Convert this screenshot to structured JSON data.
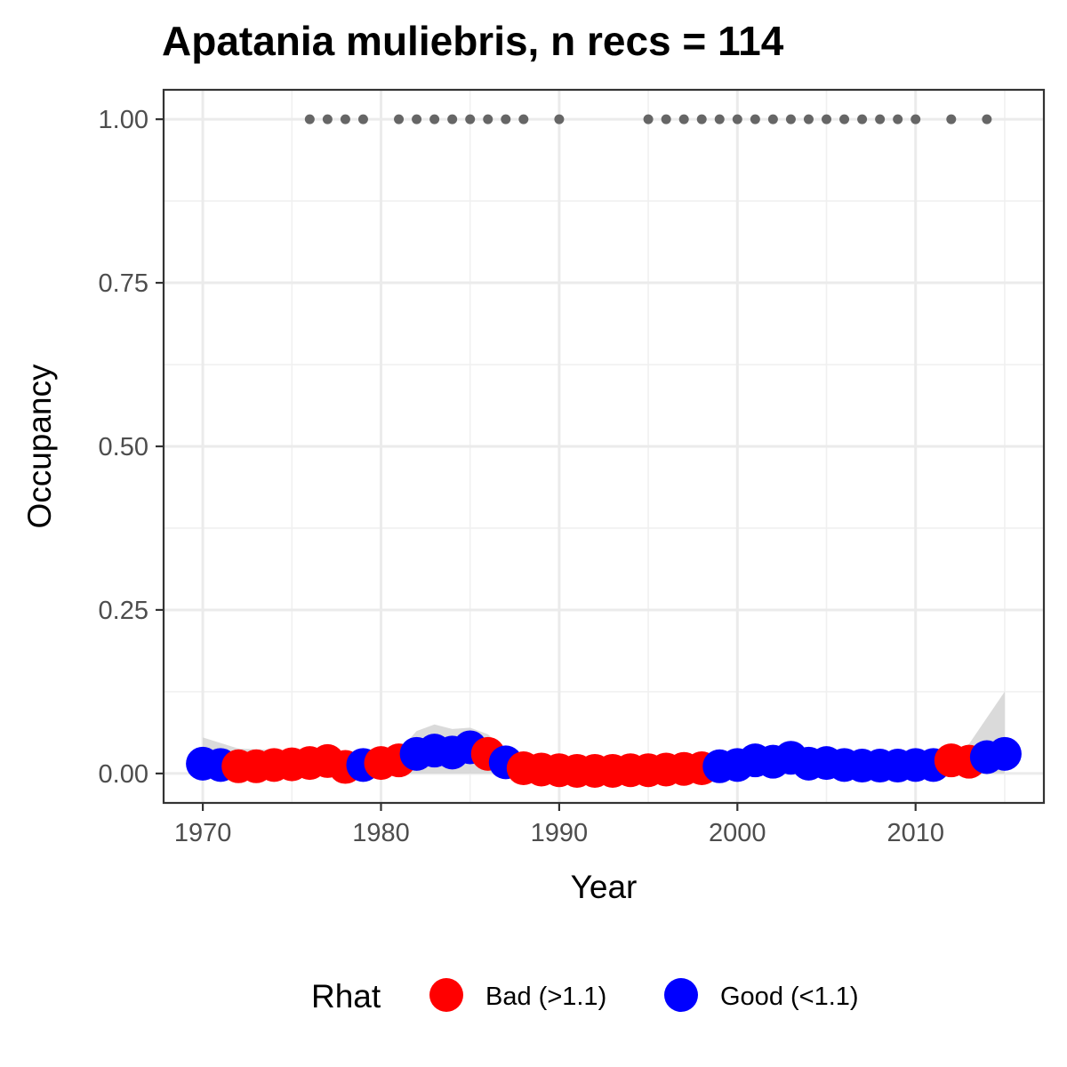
{
  "chart_data": {
    "type": "scatter",
    "title": "Apatania muliebris, n recs = 114",
    "xlabel": "Year",
    "ylabel": "Occupancy",
    "xlim": [
      1967.8,
      2017.2
    ],
    "ylim": [
      -0.045,
      1.045
    ],
    "x_ticks": [
      1970,
      1980,
      1990,
      2000,
      2010
    ],
    "x_tick_labels": [
      "1970",
      "1980",
      "1990",
      "2000",
      "2010"
    ],
    "y_ticks": [
      0,
      0.25,
      0.5,
      0.75,
      1.0
    ],
    "y_tick_labels": [
      "0.00",
      "0.25",
      "0.50",
      "0.75",
      "1.00"
    ],
    "grid": true,
    "legend": {
      "title": "Rhat",
      "position": "bottom",
      "entries": [
        {
          "label": "Bad (>1.1)",
          "color": "#ff0000"
        },
        {
          "label": "Good (<1.1)",
          "color": "#0000ff"
        }
      ]
    },
    "colors": {
      "Bad": "#ff0000",
      "Good": "#0000ff",
      "records": "#666666",
      "ribbon": "#d3d3d3"
    },
    "occupancy": [
      {
        "year": 1970,
        "value": 0.015,
        "rhat": "Good"
      },
      {
        "year": 1971,
        "value": 0.013,
        "rhat": "Good"
      },
      {
        "year": 1972,
        "value": 0.011,
        "rhat": "Bad"
      },
      {
        "year": 1973,
        "value": 0.011,
        "rhat": "Bad"
      },
      {
        "year": 1974,
        "value": 0.013,
        "rhat": "Bad"
      },
      {
        "year": 1975,
        "value": 0.014,
        "rhat": "Bad"
      },
      {
        "year": 1976,
        "value": 0.016,
        "rhat": "Bad"
      },
      {
        "year": 1977,
        "value": 0.019,
        "rhat": "Bad"
      },
      {
        "year": 1978,
        "value": 0.01,
        "rhat": "Bad"
      },
      {
        "year": 1979,
        "value": 0.013,
        "rhat": "Good"
      },
      {
        "year": 1980,
        "value": 0.016,
        "rhat": "Bad"
      },
      {
        "year": 1981,
        "value": 0.02,
        "rhat": "Bad"
      },
      {
        "year": 1982,
        "value": 0.03,
        "rhat": "Good"
      },
      {
        "year": 1983,
        "value": 0.035,
        "rhat": "Good"
      },
      {
        "year": 1984,
        "value": 0.032,
        "rhat": "Good"
      },
      {
        "year": 1985,
        "value": 0.04,
        "rhat": "Good"
      },
      {
        "year": 1986,
        "value": 0.03,
        "rhat": "Bad"
      },
      {
        "year": 1987,
        "value": 0.017,
        "rhat": "Good"
      },
      {
        "year": 1988,
        "value": 0.008,
        "rhat": "Bad"
      },
      {
        "year": 1989,
        "value": 0.006,
        "rhat": "Bad"
      },
      {
        "year": 1990,
        "value": 0.005,
        "rhat": "Bad"
      },
      {
        "year": 1991,
        "value": 0.004,
        "rhat": "Bad"
      },
      {
        "year": 1992,
        "value": 0.004,
        "rhat": "Bad"
      },
      {
        "year": 1993,
        "value": 0.004,
        "rhat": "Bad"
      },
      {
        "year": 1994,
        "value": 0.005,
        "rhat": "Bad"
      },
      {
        "year": 1995,
        "value": 0.005,
        "rhat": "Bad"
      },
      {
        "year": 1996,
        "value": 0.006,
        "rhat": "Bad"
      },
      {
        "year": 1997,
        "value": 0.007,
        "rhat": "Bad"
      },
      {
        "year": 1998,
        "value": 0.008,
        "rhat": "Bad"
      },
      {
        "year": 1999,
        "value": 0.011,
        "rhat": "Good"
      },
      {
        "year": 2000,
        "value": 0.013,
        "rhat": "Good"
      },
      {
        "year": 2001,
        "value": 0.02,
        "rhat": "Good"
      },
      {
        "year": 2002,
        "value": 0.018,
        "rhat": "Good"
      },
      {
        "year": 2003,
        "value": 0.024,
        "rhat": "Good"
      },
      {
        "year": 2004,
        "value": 0.015,
        "rhat": "Good"
      },
      {
        "year": 2005,
        "value": 0.016,
        "rhat": "Good"
      },
      {
        "year": 2006,
        "value": 0.013,
        "rhat": "Good"
      },
      {
        "year": 2007,
        "value": 0.012,
        "rhat": "Good"
      },
      {
        "year": 2008,
        "value": 0.012,
        "rhat": "Good"
      },
      {
        "year": 2009,
        "value": 0.012,
        "rhat": "Good"
      },
      {
        "year": 2010,
        "value": 0.013,
        "rhat": "Good"
      },
      {
        "year": 2011,
        "value": 0.013,
        "rhat": "Good"
      },
      {
        "year": 2012,
        "value": 0.02,
        "rhat": "Bad"
      },
      {
        "year": 2013,
        "value": 0.018,
        "rhat": "Bad"
      },
      {
        "year": 2014,
        "value": 0.025,
        "rhat": "Good"
      },
      {
        "year": 2015,
        "value": 0.03,
        "rhat": "Good"
      }
    ],
    "ribbon": {
      "years": [
        1970,
        1972,
        1974,
        1976,
        1978,
        1980,
        1981,
        1982,
        1983,
        1984,
        1985,
        1986,
        1987,
        1988,
        1990,
        1995,
        2000,
        2003,
        2005,
        2010,
        2012,
        2013,
        2014,
        2015
      ],
      "lower": [
        0.0,
        0.0,
        0.0,
        0.0,
        0.0,
        0.0,
        0.0,
        0.0,
        0.0,
        0.0,
        0.0,
        0.0,
        0.0,
        0.0,
        0.0,
        0.0,
        0.0,
        0.0,
        0.0,
        0.0,
        0.0,
        0.0,
        0.0,
        0.0
      ],
      "upper": [
        0.055,
        0.038,
        0.036,
        0.034,
        0.032,
        0.028,
        0.035,
        0.065,
        0.075,
        0.068,
        0.07,
        0.06,
        0.035,
        0.02,
        0.018,
        0.02,
        0.022,
        0.03,
        0.025,
        0.025,
        0.03,
        0.045,
        0.085,
        0.125
      ]
    },
    "record_years": [
      1976,
      1977,
      1978,
      1979,
      1981,
      1982,
      1983,
      1984,
      1985,
      1986,
      1987,
      1988,
      1990,
      1995,
      1996,
      1997,
      1998,
      1999,
      2000,
      2001,
      2002,
      2003,
      2004,
      2005,
      2006,
      2007,
      2008,
      2009,
      2010,
      2012,
      2014
    ],
    "record_value": 1.0
  }
}
